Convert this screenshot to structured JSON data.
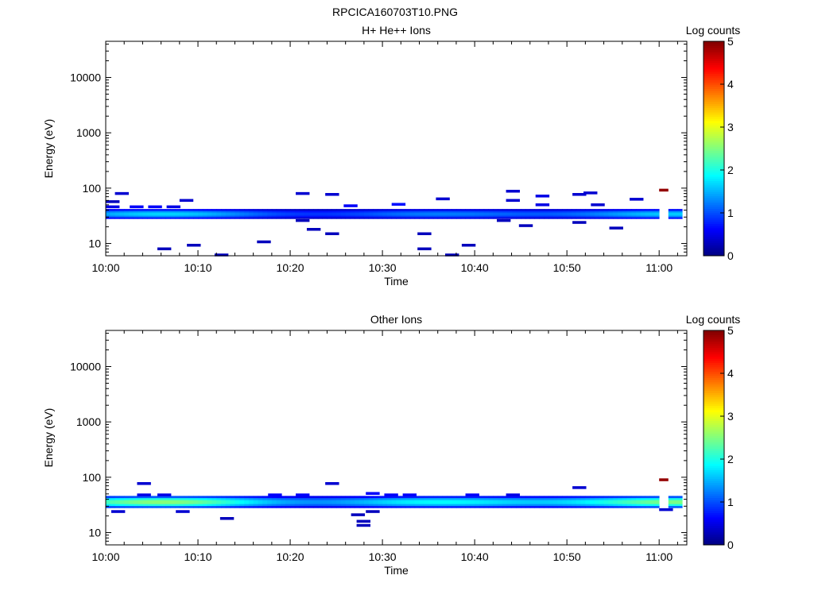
{
  "figure": {
    "title": "RPCICA160703T10.PNG"
  },
  "chart_data": [
    {
      "type": "heatmap",
      "title": "H+ He++ Ions",
      "xlabel": "Time",
      "ylabel": "Energy (eV)",
      "x_ticks": [
        "10:00",
        "10:10",
        "10:20",
        "10:30",
        "10:40",
        "10:50",
        "11:00"
      ],
      "xlim_minutes": [
        0,
        63
      ],
      "y_scale": "log",
      "ylim": [
        6,
        45000
      ],
      "y_ticks": [
        "10",
        "100",
        "1000",
        "10000"
      ],
      "colorbar": {
        "label": "Log counts",
        "range": [
          0,
          5
        ],
        "ticks": [
          "0",
          "1",
          "2",
          "3",
          "4",
          "5"
        ]
      },
      "band": {
        "energy_low": 28,
        "energy_high": 42,
        "peak_log_counts": 1.7,
        "time_start": 0,
        "time_end": 62.5,
        "gap": [
          59.8,
          60.6
        ]
      },
      "cells": [
        {
          "t": 0.0,
          "e": 57,
          "v": 0.3
        },
        {
          "t": 1.0,
          "e": 80,
          "v": 0.4
        },
        {
          "t": 0.0,
          "e": 46,
          "v": 0.5
        },
        {
          "t": 2.6,
          "e": 46,
          "v": 0.6
        },
        {
          "t": 4.6,
          "e": 46,
          "v": 0.6
        },
        {
          "t": 6.6,
          "e": 46,
          "v": 0.5
        },
        {
          "t": 8.0,
          "e": 60,
          "v": 0.4
        },
        {
          "t": 5.6,
          "e": 8,
          "v": 0.3
        },
        {
          "t": 8.8,
          "e": 9.3,
          "v": 0.3
        },
        {
          "t": 11.8,
          "e": 6.2,
          "v": 0.3
        },
        {
          "t": 16.4,
          "e": 10.7,
          "v": 0.3
        },
        {
          "t": 20.6,
          "e": 80,
          "v": 0.4
        },
        {
          "t": 20.6,
          "e": 26,
          "v": 0.3
        },
        {
          "t": 21.8,
          "e": 18,
          "v": 0.3
        },
        {
          "t": 23.8,
          "e": 77,
          "v": 0.4
        },
        {
          "t": 23.8,
          "e": 15,
          "v": 0.3
        },
        {
          "t": 25.8,
          "e": 48,
          "v": 0.6
        },
        {
          "t": 31.0,
          "e": 51,
          "v": 0.7
        },
        {
          "t": 33.8,
          "e": 15,
          "v": 0.3
        },
        {
          "t": 33.8,
          "e": 8,
          "v": 0.3
        },
        {
          "t": 35.8,
          "e": 64,
          "v": 0.4
        },
        {
          "t": 36.8,
          "e": 6.2,
          "v": 0.3
        },
        {
          "t": 38.6,
          "e": 9.3,
          "v": 0.3
        },
        {
          "t": 42.4,
          "e": 26,
          "v": 0.3
        },
        {
          "t": 43.4,
          "e": 88,
          "v": 0.4
        },
        {
          "t": 43.4,
          "e": 60,
          "v": 0.4
        },
        {
          "t": 44.8,
          "e": 21,
          "v": 0.3
        },
        {
          "t": 46.6,
          "e": 72,
          "v": 0.5
        },
        {
          "t": 46.6,
          "e": 50,
          "v": 0.5
        },
        {
          "t": 50.6,
          "e": 77,
          "v": 0.4
        },
        {
          "t": 51.8,
          "e": 82,
          "v": 0.4
        },
        {
          "t": 50.6,
          "e": 24,
          "v": 0.3
        },
        {
          "t": 52.6,
          "e": 50,
          "v": 0.4
        },
        {
          "t": 54.6,
          "e": 19,
          "v": 0.3
        },
        {
          "t": 56.8,
          "e": 63,
          "v": 0.4
        },
        {
          "t": 60.0,
          "e": 92,
          "v": 4.9
        }
      ]
    },
    {
      "type": "heatmap",
      "title": "Other Ions",
      "xlabel": "Time",
      "ylabel": "Energy (eV)",
      "x_ticks": [
        "10:00",
        "10:10",
        "10:20",
        "10:30",
        "10:40",
        "10:50",
        "11:00"
      ],
      "xlim_minutes": [
        0,
        63
      ],
      "y_scale": "log",
      "ylim": [
        6,
        45000
      ],
      "y_ticks": [
        "10",
        "100",
        "1000",
        "10000"
      ],
      "colorbar": {
        "label": "Log counts",
        "range": [
          0,
          5
        ],
        "ticks": [
          "0",
          "1",
          "2",
          "3",
          "4",
          "5"
        ]
      },
      "band": {
        "energy_low": 28,
        "energy_high": 46,
        "peak_log_counts": 2.6,
        "time_start": 0,
        "time_end": 62.5,
        "gap": [
          59.8,
          60.6
        ]
      },
      "cells": [
        {
          "t": 0.6,
          "e": 24,
          "v": 0.4
        },
        {
          "t": 3.4,
          "e": 77,
          "v": 0.4
        },
        {
          "t": 3.4,
          "e": 48,
          "v": 0.5
        },
        {
          "t": 5.6,
          "e": 48,
          "v": 0.5
        },
        {
          "t": 7.6,
          "e": 24,
          "v": 0.4
        },
        {
          "t": 12.4,
          "e": 18,
          "v": 0.3
        },
        {
          "t": 17.6,
          "e": 48,
          "v": 0.6
        },
        {
          "t": 20.6,
          "e": 48,
          "v": 0.6
        },
        {
          "t": 23.8,
          "e": 77,
          "v": 0.4
        },
        {
          "t": 26.6,
          "e": 21,
          "v": 0.3
        },
        {
          "t": 27.2,
          "e": 16,
          "v": 0.3
        },
        {
          "t": 27.2,
          "e": 13.5,
          "v": 0.3
        },
        {
          "t": 28.2,
          "e": 51,
          "v": 0.6
        },
        {
          "t": 28.2,
          "e": 24,
          "v": 0.3
        },
        {
          "t": 30.2,
          "e": 48,
          "v": 0.6
        },
        {
          "t": 32.2,
          "e": 48,
          "v": 0.6
        },
        {
          "t": 39.0,
          "e": 48,
          "v": 0.6
        },
        {
          "t": 43.4,
          "e": 48,
          "v": 0.5
        },
        {
          "t": 50.6,
          "e": 65,
          "v": 0.4
        },
        {
          "t": 60.0,
          "e": 26,
          "v": 0.4
        },
        {
          "t": 60.0,
          "e": 90,
          "v": 4.9
        }
      ]
    }
  ]
}
